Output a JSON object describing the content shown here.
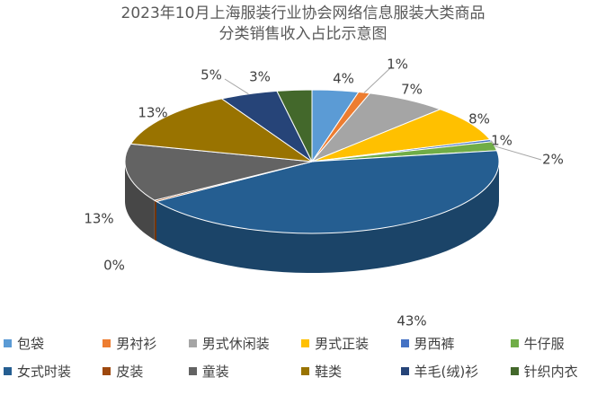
{
  "chart_data": {
    "type": "pie",
    "title_line1": "2023年10月上海服装行业协会网络信息服装大类商品",
    "title_line2": "分类销售收入占比示意图",
    "slices": [
      {
        "label": "包袋",
        "value": 4,
        "display": "4%",
        "color": "#5B9BD5"
      },
      {
        "label": "男衬衫",
        "value": 1,
        "display": "1%",
        "color": "#ED7D31"
      },
      {
        "label": "男式休闲装",
        "value": 7,
        "display": "7%",
        "color": "#A5A5A5"
      },
      {
        "label": "男式正装",
        "value": 8,
        "display": "8%",
        "color": "#FFC000"
      },
      {
        "label": "男西裤",
        "value": 0.5,
        "display": "1%",
        "color": "#4472C4"
      },
      {
        "label": "牛仔服",
        "value": 2,
        "display": "2%",
        "color": "#70AD47"
      },
      {
        "label": "女式时装",
        "value": 43,
        "display": "43%",
        "color": "#255E91"
      },
      {
        "label": "皮装",
        "value": 0.3,
        "display": "0%",
        "color": "#9E480E"
      },
      {
        "label": "童装",
        "value": 13,
        "display": "13%",
        "color": "#636363"
      },
      {
        "label": "鞋类",
        "value": 13,
        "display": "13%",
        "color": "#997300"
      },
      {
        "label": "羊毛(绒)衫",
        "value": 5,
        "display": "5%",
        "color": "#264478"
      },
      {
        "label": "针织内衣",
        "value": 3,
        "display": "3%",
        "color": "#43682B"
      }
    ],
    "legend_position": "bottom"
  }
}
